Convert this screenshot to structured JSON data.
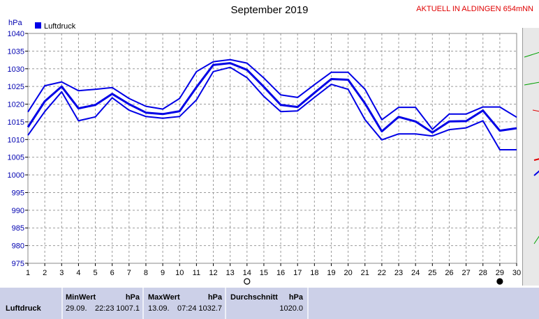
{
  "title": "September 2019",
  "station": "AKTUELL IN ALDINGEN 654mNN",
  "chart_data": {
    "type": "line",
    "ylabel": "hPa",
    "ylim": [
      975,
      1040
    ],
    "yticks": [
      975,
      980,
      985,
      990,
      995,
      1000,
      1005,
      1010,
      1015,
      1020,
      1025,
      1030,
      1035,
      1040
    ],
    "xlim": [
      1,
      30
    ],
    "x": [
      1,
      2,
      3,
      4,
      5,
      6,
      7,
      8,
      9,
      10,
      11,
      12,
      13,
      14,
      15,
      16,
      17,
      18,
      19,
      20,
      21,
      22,
      23,
      24,
      25,
      26,
      27,
      28,
      29,
      30
    ],
    "grid": true,
    "legend": [
      "Luftdruck"
    ],
    "legend_position": "top-left",
    "markers": [
      {
        "x": 14,
        "symbol": "new-moon-open"
      },
      {
        "x": 29,
        "symbol": "full-moon-filled"
      }
    ],
    "series": [
      {
        "role": "max",
        "values": [
          1017.8,
          1025.2,
          1026.3,
          1023.8,
          1024.2,
          1024.7,
          1021.6,
          1019.4,
          1018.6,
          1021.6,
          1029.2,
          1032.0,
          1032.6,
          1031.6,
          1027.4,
          1022.6,
          1021.9,
          1025.5,
          1029.0,
          1029.0,
          1024.2,
          1015.6,
          1019.1,
          1019.1,
          1012.9,
          1017.2,
          1017.2,
          1019.2,
          1019.2,
          1016.3
        ]
      },
      {
        "role": "mean",
        "values": [
          1013.5,
          1020.8,
          1025.0,
          1018.8,
          1019.8,
          1022.9,
          1020.0,
          1017.6,
          1017.2,
          1018.0,
          1024.8,
          1031.1,
          1031.6,
          1029.7,
          1024.9,
          1019.8,
          1019.2,
          1023.2,
          1027.1,
          1026.9,
          1020.2,
          1012.3,
          1016.4,
          1015.1,
          1012.0,
          1015.1,
          1015.2,
          1018.2,
          1012.5,
          1013.2
        ]
      },
      {
        "role": "min",
        "values": [
          1011.2,
          1017.9,
          1023.5,
          1015.3,
          1016.4,
          1021.8,
          1018.3,
          1016.5,
          1016.0,
          1016.5,
          1021.2,
          1029.2,
          1030.4,
          1027.5,
          1022.2,
          1017.9,
          1018.1,
          1021.9,
          1025.6,
          1024.2,
          1015.6,
          1009.9,
          1011.6,
          1011.6,
          1011.0,
          1012.8,
          1013.3,
          1015.3,
          1007.1,
          1007.1
        ]
      }
    ]
  },
  "stats": {
    "row_label": "Luftdruck",
    "min": {
      "label": "MinWert",
      "unit": "hPa",
      "date": "29.09.",
      "time": "22:23",
      "value": "1007.1"
    },
    "max": {
      "label": "MaxWert",
      "unit": "hPa",
      "date": "13.09.",
      "time": "07:24",
      "value": "1032.7"
    },
    "avg": {
      "label": "Durchschnitt",
      "unit": "hPa",
      "value": "1020.0"
    }
  },
  "colors": {
    "series": "#0000e6",
    "grid": "#9a9a9a",
    "title_accent": "#e00000",
    "panel": "#ccd0e8"
  }
}
